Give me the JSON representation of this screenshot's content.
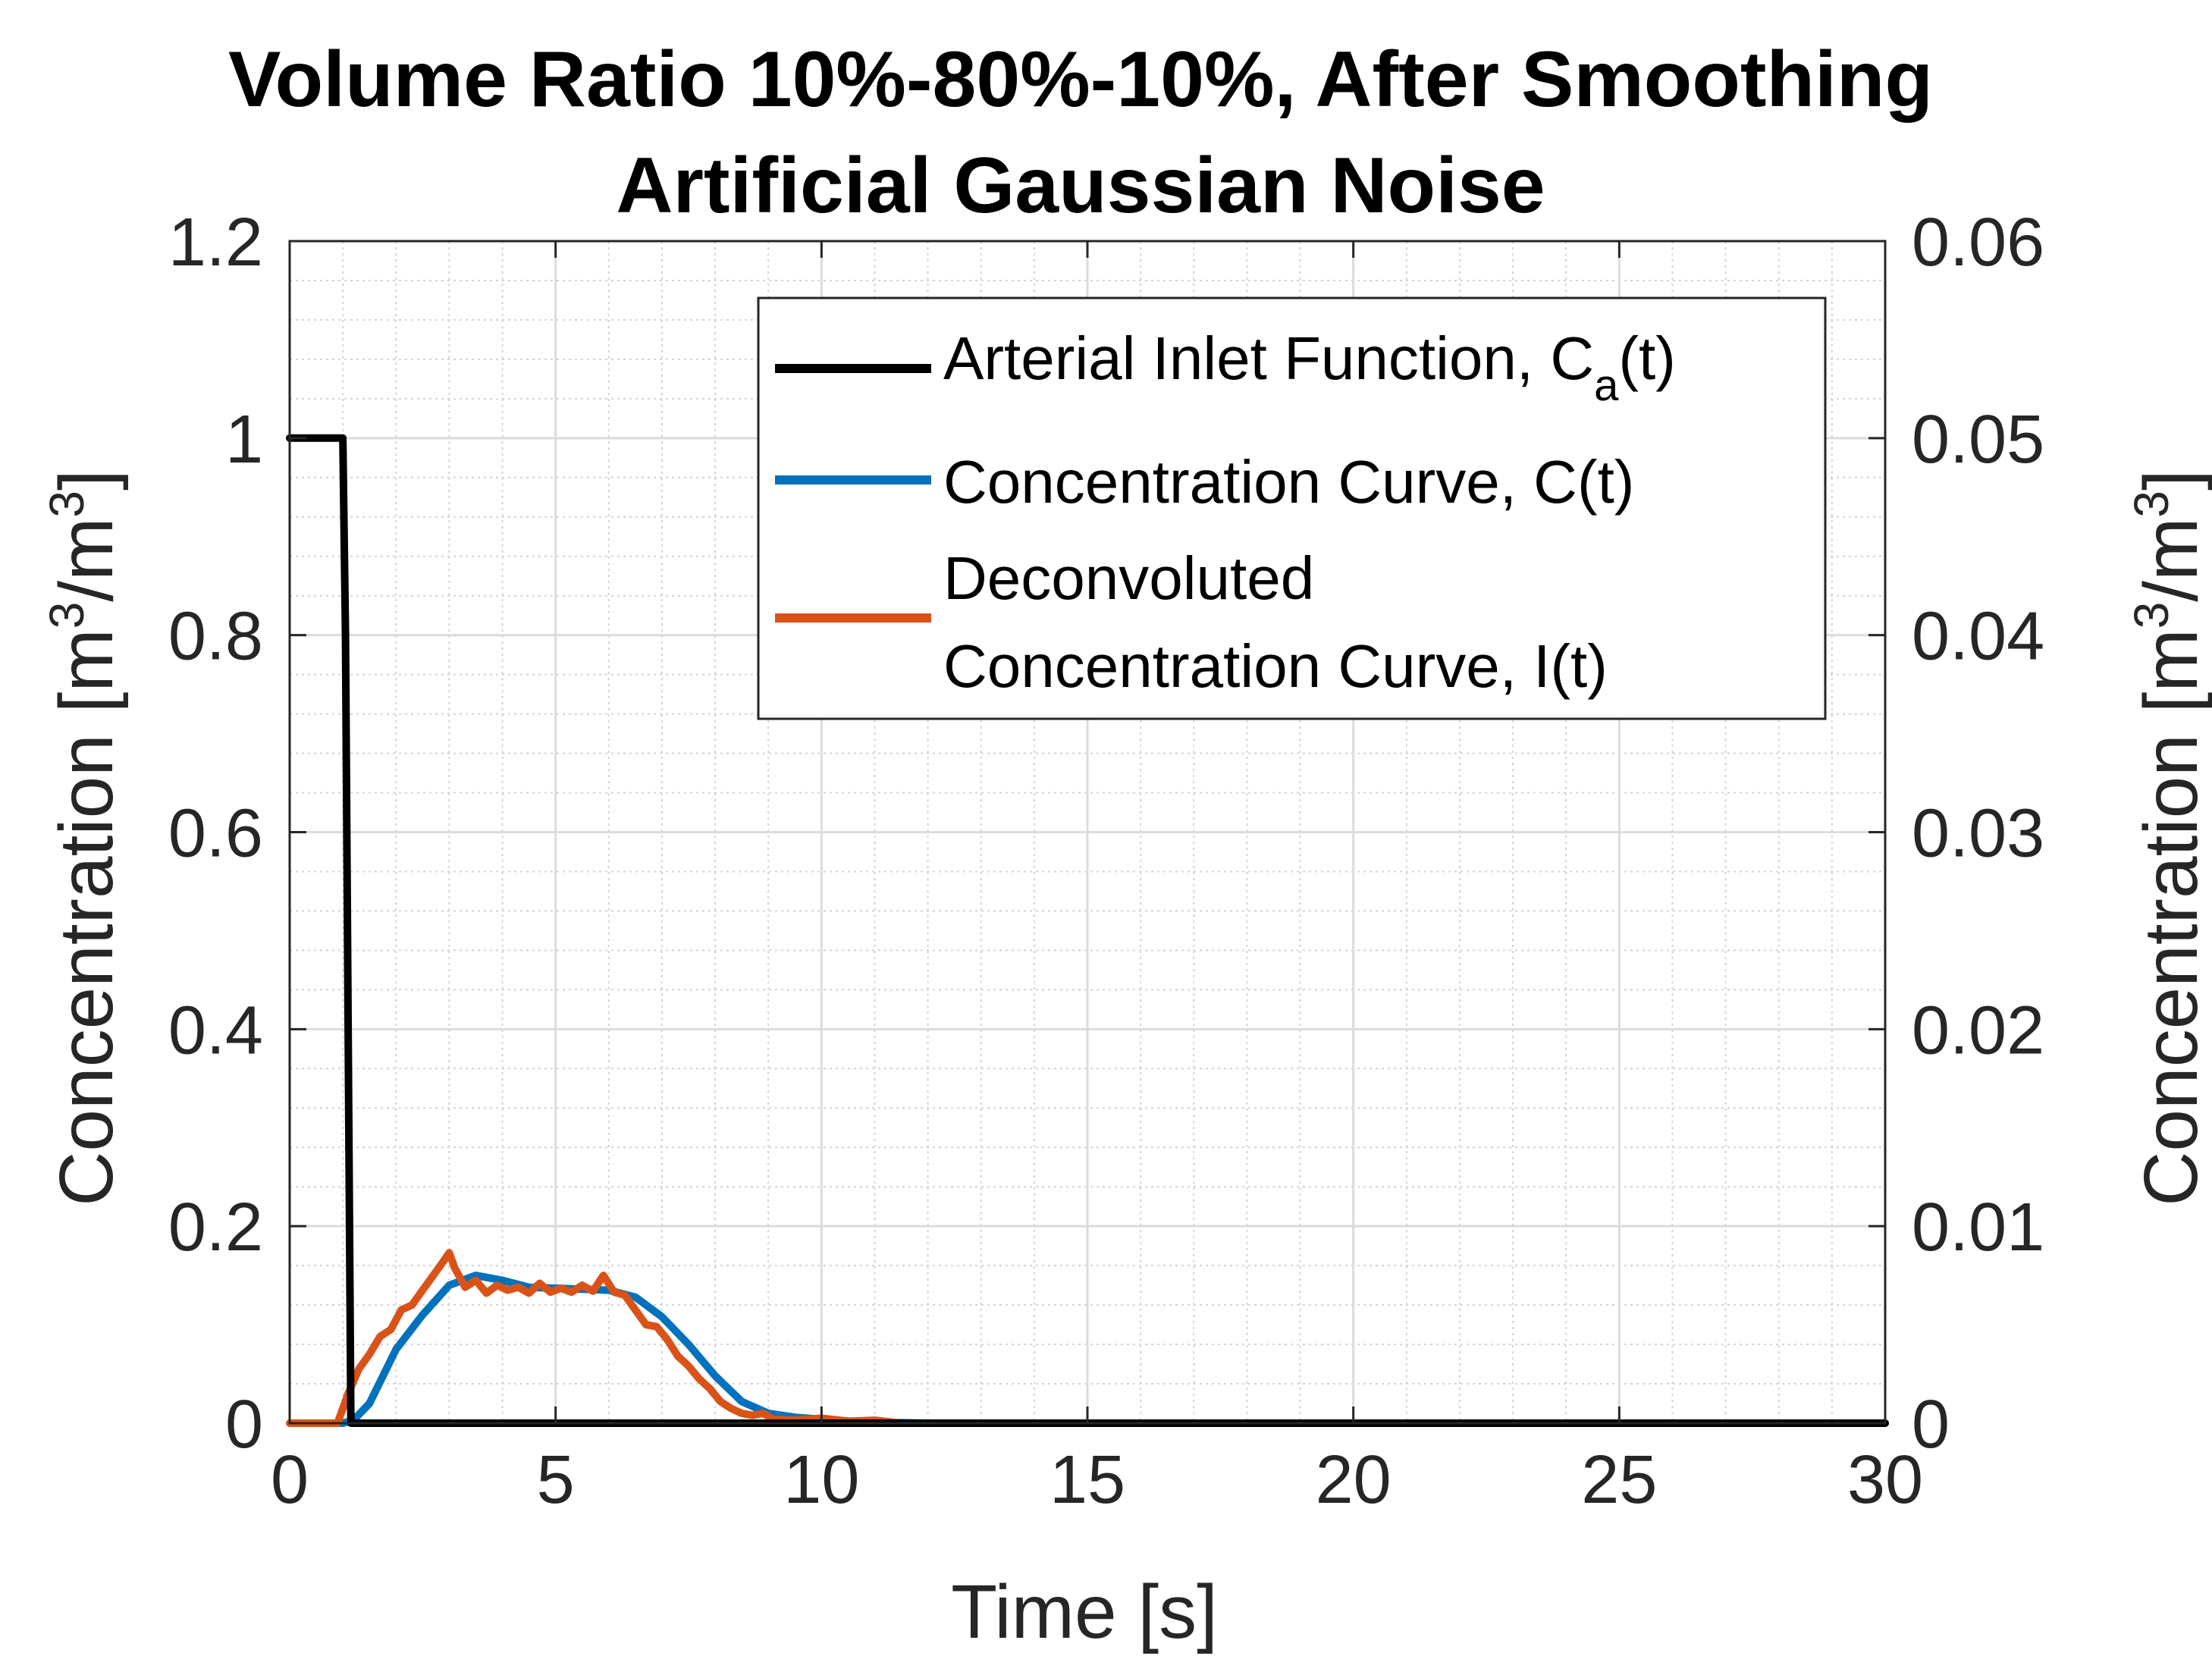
{
  "chart_data": {
    "type": "line",
    "title": [
      "Volume Ratio 10%-80%-10%, After Smoothing",
      "Artificial Gaussian Noise"
    ],
    "xlabel": "Time [s]",
    "ylabel_left": {
      "base": "Concentration [m",
      "exp1": "3",
      "mid": "/m",
      "exp2": "3",
      "end": "]"
    },
    "ylabel_right": {
      "base": "Concentration [m",
      "exp1": "3",
      "mid": "/m",
      "exp2": "3",
      "end": "]"
    },
    "xlim": [
      0,
      30
    ],
    "ylim_left": [
      0,
      1.2
    ],
    "ylim_right": [
      0,
      0.06
    ],
    "xticks": [
      0,
      5,
      10,
      15,
      20,
      25,
      30
    ],
    "xtick_labels": [
      "0",
      "5",
      "10",
      "15",
      "20",
      "25",
      "30"
    ],
    "yticks_left": [
      0,
      0.2,
      0.4,
      0.6,
      0.8,
      1,
      1.2
    ],
    "ytick_labels_left": [
      "0",
      "0.2",
      "0.4",
      "0.6",
      "0.8",
      "1",
      "1.2"
    ],
    "yticks_right": [
      0,
      0.01,
      0.02,
      0.03,
      0.04,
      0.05,
      0.06
    ],
    "ytick_labels_right": [
      "0",
      "0.01",
      "0.02",
      "0.03",
      "0.04",
      "0.05",
      "0.06"
    ],
    "grid": true,
    "minor_grid": true,
    "legend_position": "top-right",
    "series": [
      {
        "name": "Arterial Inlet Function, C(t)",
        "legend_parts": {
          "pre": "Arterial Inlet Function, C",
          "sub": "a",
          "post": "(t)"
        },
        "axis": "left",
        "color": "#000000",
        "x": [
          0,
          1.0,
          1.05,
          1.1,
          1.15,
          30
        ],
        "y": [
          1,
          1,
          0.8,
          0.4,
          0,
          0
        ]
      },
      {
        "name": "Concentration Curve, C(t)",
        "legend_lines": [
          "Concentration Curve, C(t)"
        ],
        "axis": "left",
        "color": "#0072BD",
        "x": [
          0,
          1.0,
          1.2,
          1.5,
          2.0,
          2.5,
          3.0,
          3.5,
          4.0,
          4.5,
          5.0,
          5.5,
          6.0,
          6.5,
          7.0,
          7.5,
          8.0,
          8.5,
          9.0,
          9.5,
          10.0,
          10.5,
          11.0,
          12.0,
          30
        ],
        "y": [
          0,
          0,
          0.003,
          0.02,
          0.075,
          0.11,
          0.14,
          0.15,
          0.145,
          0.138,
          0.137,
          0.136,
          0.135,
          0.128,
          0.108,
          0.08,
          0.048,
          0.022,
          0.01,
          0.006,
          0.004,
          0.002,
          0.001,
          0,
          0
        ]
      },
      {
        "name": "Deconvoluted Concentration Curve, I(t)",
        "legend_lines": [
          "Deconvoluted",
          "Concentration Curve, I(t)"
        ],
        "axis": "left",
        "color": "#D95319",
        "x": [
          0,
          0.9,
          1.1,
          1.3,
          1.5,
          1.7,
          1.9,
          2.1,
          2.3,
          2.5,
          2.7,
          2.9,
          3.0,
          3.1,
          3.3,
          3.5,
          3.7,
          3.9,
          4.1,
          4.3,
          4.5,
          4.7,
          4.9,
          5.1,
          5.3,
          5.5,
          5.7,
          5.9,
          6.1,
          6.3,
          6.5,
          6.7,
          6.9,
          7.1,
          7.3,
          7.5,
          7.7,
          7.9,
          8.1,
          8.3,
          8.5,
          8.7,
          8.9,
          9.1,
          9.5,
          10.0,
          10.5,
          11.0,
          11.5,
          12.0,
          30
        ],
        "y": [
          0,
          0,
          0.03,
          0.055,
          0.07,
          0.088,
          0.095,
          0.115,
          0.12,
          0.135,
          0.15,
          0.165,
          0.173,
          0.158,
          0.138,
          0.145,
          0.132,
          0.14,
          0.135,
          0.138,
          0.132,
          0.142,
          0.133,
          0.137,
          0.133,
          0.14,
          0.134,
          0.15,
          0.133,
          0.13,
          0.115,
          0.1,
          0.098,
          0.085,
          0.068,
          0.058,
          0.045,
          0.035,
          0.022,
          0.015,
          0.01,
          0.008,
          0.01,
          0.004,
          0.003,
          0.005,
          0.002,
          0.003,
          0,
          0,
          0
        ]
      }
    ]
  }
}
